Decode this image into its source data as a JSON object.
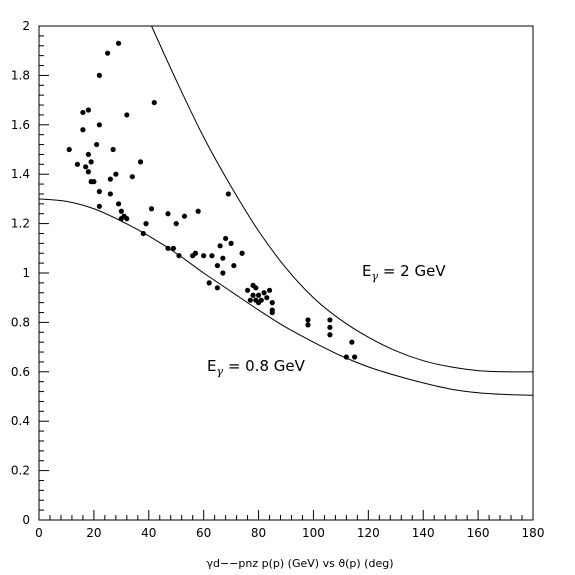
{
  "chart_data": {
    "type": "scatter",
    "xlabel": "γd−−pnz p(p) (GeV) vs ϑ(p) (deg)",
    "ylabel": "",
    "xlim": [
      0,
      180
    ],
    "ylim": [
      0,
      2
    ],
    "x_ticks": [
      "0",
      "20",
      "40",
      "60",
      "80",
      "100",
      "120",
      "140",
      "160",
      "180"
    ],
    "y_ticks": [
      "0",
      "0.2",
      "0.4",
      "0.6",
      "0.8",
      "1",
      "1.2",
      "1.4",
      "1.6",
      "1.8",
      "2"
    ],
    "grid": false,
    "annotations": {
      "upper": {
        "prefix": "E",
        "sub": "γ",
        "suffix": " = 2 GeV"
      },
      "lower": {
        "prefix": "E",
        "sub": "γ",
        "suffix": " = 0.8 GeV"
      }
    },
    "curves": [
      {
        "label": "E_γ = 2 GeV",
        "x": [
          41,
          50,
          60,
          70,
          80,
          90,
          100,
          110,
          120,
          130,
          140,
          150,
          160,
          170,
          180
        ],
        "y": [
          2.0,
          1.78,
          1.55,
          1.35,
          1.17,
          1.02,
          0.9,
          0.81,
          0.74,
          0.685,
          0.645,
          0.62,
          0.605,
          0.6,
          0.6
        ]
      },
      {
        "label": "E_γ = 0.8 GeV",
        "x": [
          0,
          10,
          20,
          30,
          40,
          50,
          60,
          70,
          80,
          90,
          100,
          110,
          120,
          130,
          140,
          150,
          160,
          170,
          180
        ],
        "y": [
          1.3,
          1.29,
          1.26,
          1.21,
          1.15,
          1.08,
          1.0,
          0.925,
          0.85,
          0.78,
          0.72,
          0.665,
          0.62,
          0.585,
          0.555,
          0.53,
          0.515,
          0.508,
          0.505
        ]
      }
    ],
    "points": [
      [
        11,
        1.5
      ],
      [
        14,
        1.44
      ],
      [
        16,
        1.65
      ],
      [
        16,
        1.58
      ],
      [
        17,
        1.43
      ],
      [
        18,
        1.66
      ],
      [
        18,
        1.48
      ],
      [
        18,
        1.41
      ],
      [
        19,
        1.37
      ],
      [
        19,
        1.45
      ],
      [
        20,
        1.37
      ],
      [
        21,
        1.52
      ],
      [
        22,
        1.33
      ],
      [
        22,
        1.6
      ],
      [
        22,
        1.27
      ],
      [
        22,
        1.8
      ],
      [
        25,
        1.89
      ],
      [
        26,
        1.38
      ],
      [
        26,
        1.32
      ],
      [
        27,
        1.5
      ],
      [
        28,
        1.4
      ],
      [
        29,
        1.93
      ],
      [
        29,
        1.28
      ],
      [
        30,
        1.25
      ],
      [
        30,
        1.22
      ],
      [
        31,
        1.23
      ],
      [
        32,
        1.64
      ],
      [
        32,
        1.22
      ],
      [
        34,
        1.39
      ],
      [
        37,
        1.45
      ],
      [
        38,
        1.16
      ],
      [
        39,
        1.2
      ],
      [
        41,
        1.26
      ],
      [
        42,
        1.69
      ],
      [
        47,
        1.24
      ],
      [
        47,
        1.1
      ],
      [
        49,
        1.1
      ],
      [
        50,
        1.2
      ],
      [
        51,
        1.07
      ],
      [
        53,
        1.23
      ],
      [
        56,
        1.07
      ],
      [
        57,
        1.08
      ],
      [
        58,
        1.25
      ],
      [
        60,
        1.07
      ],
      [
        62,
        0.96
      ],
      [
        63,
        1.07
      ],
      [
        65,
        0.94
      ],
      [
        65,
        1.03
      ],
      [
        66,
        1.11
      ],
      [
        67,
        1.06
      ],
      [
        67,
        1.0
      ],
      [
        68,
        1.14
      ],
      [
        69,
        1.32
      ],
      [
        70,
        1.12
      ],
      [
        71,
        1.03
      ],
      [
        74,
        1.08
      ],
      [
        76,
        0.93
      ],
      [
        77,
        0.89
      ],
      [
        78,
        0.95
      ],
      [
        78,
        0.91
      ],
      [
        79,
        0.89
      ],
      [
        79,
        0.94
      ],
      [
        80,
        0.88
      ],
      [
        80,
        0.91
      ],
      [
        81,
        0.89
      ],
      [
        82,
        0.92
      ],
      [
        83,
        0.9
      ],
      [
        84,
        0.93
      ],
      [
        85,
        0.88
      ],
      [
        85,
        0.84
      ],
      [
        85,
        0.85
      ],
      [
        98,
        0.81
      ],
      [
        98,
        0.79
      ],
      [
        106,
        0.78
      ],
      [
        106,
        0.75
      ],
      [
        106,
        0.81
      ],
      [
        112,
        0.66
      ],
      [
        114,
        0.72
      ],
      [
        115,
        0.66
      ]
    ]
  }
}
